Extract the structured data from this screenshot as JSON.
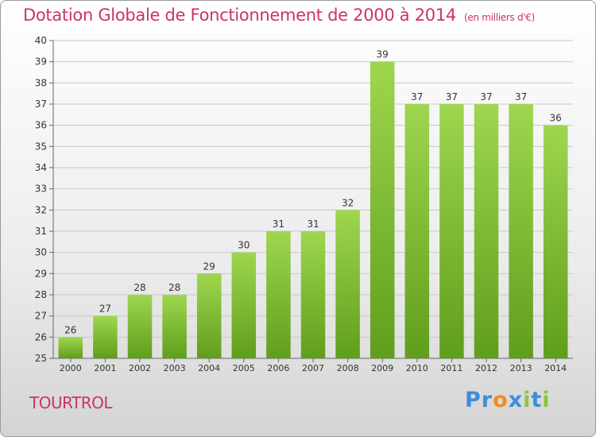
{
  "header": {
    "title": "Dotation Globale de Fonctionnement de 2000 à 2014",
    "unit": "(en milliers d'€)"
  },
  "footer": {
    "commune": "TOURTROL",
    "logo": {
      "text": "Proxiti",
      "letters": [
        {
          "char": "P",
          "color": "#3b8fd6"
        },
        {
          "char": "r",
          "color": "#3b8fd6"
        },
        {
          "char": "o",
          "color": "#f08c1a"
        },
        {
          "char": "x",
          "color": "#3b8fd6"
        },
        {
          "char": "i",
          "color": "#8cc63e"
        },
        {
          "char": "t",
          "color": "#3b8fd6"
        },
        {
          "char": "i",
          "color": "#8cc63e"
        }
      ]
    }
  },
  "colors": {
    "bar_light": "#9fd64f",
    "bar_dark": "#5f9e1c",
    "title": "#cc3366",
    "grid": "#c8c8c8",
    "axis_text": "#333333"
  },
  "chart_data": {
    "type": "bar",
    "categories": [
      "2000",
      "2001",
      "2002",
      "2003",
      "2004",
      "2005",
      "2006",
      "2007",
      "2008",
      "2009",
      "2010",
      "2011",
      "2012",
      "2013",
      "2014"
    ],
    "values": [
      26,
      27,
      28,
      28,
      29,
      30,
      31,
      31,
      32,
      39,
      37,
      37,
      37,
      37,
      36
    ],
    "ylim": [
      25,
      40
    ],
    "yticks": [
      25,
      26,
      27,
      28,
      29,
      30,
      31,
      32,
      33,
      34,
      35,
      36,
      37,
      38,
      39,
      40
    ],
    "grid": true,
    "data_labels": true
  }
}
